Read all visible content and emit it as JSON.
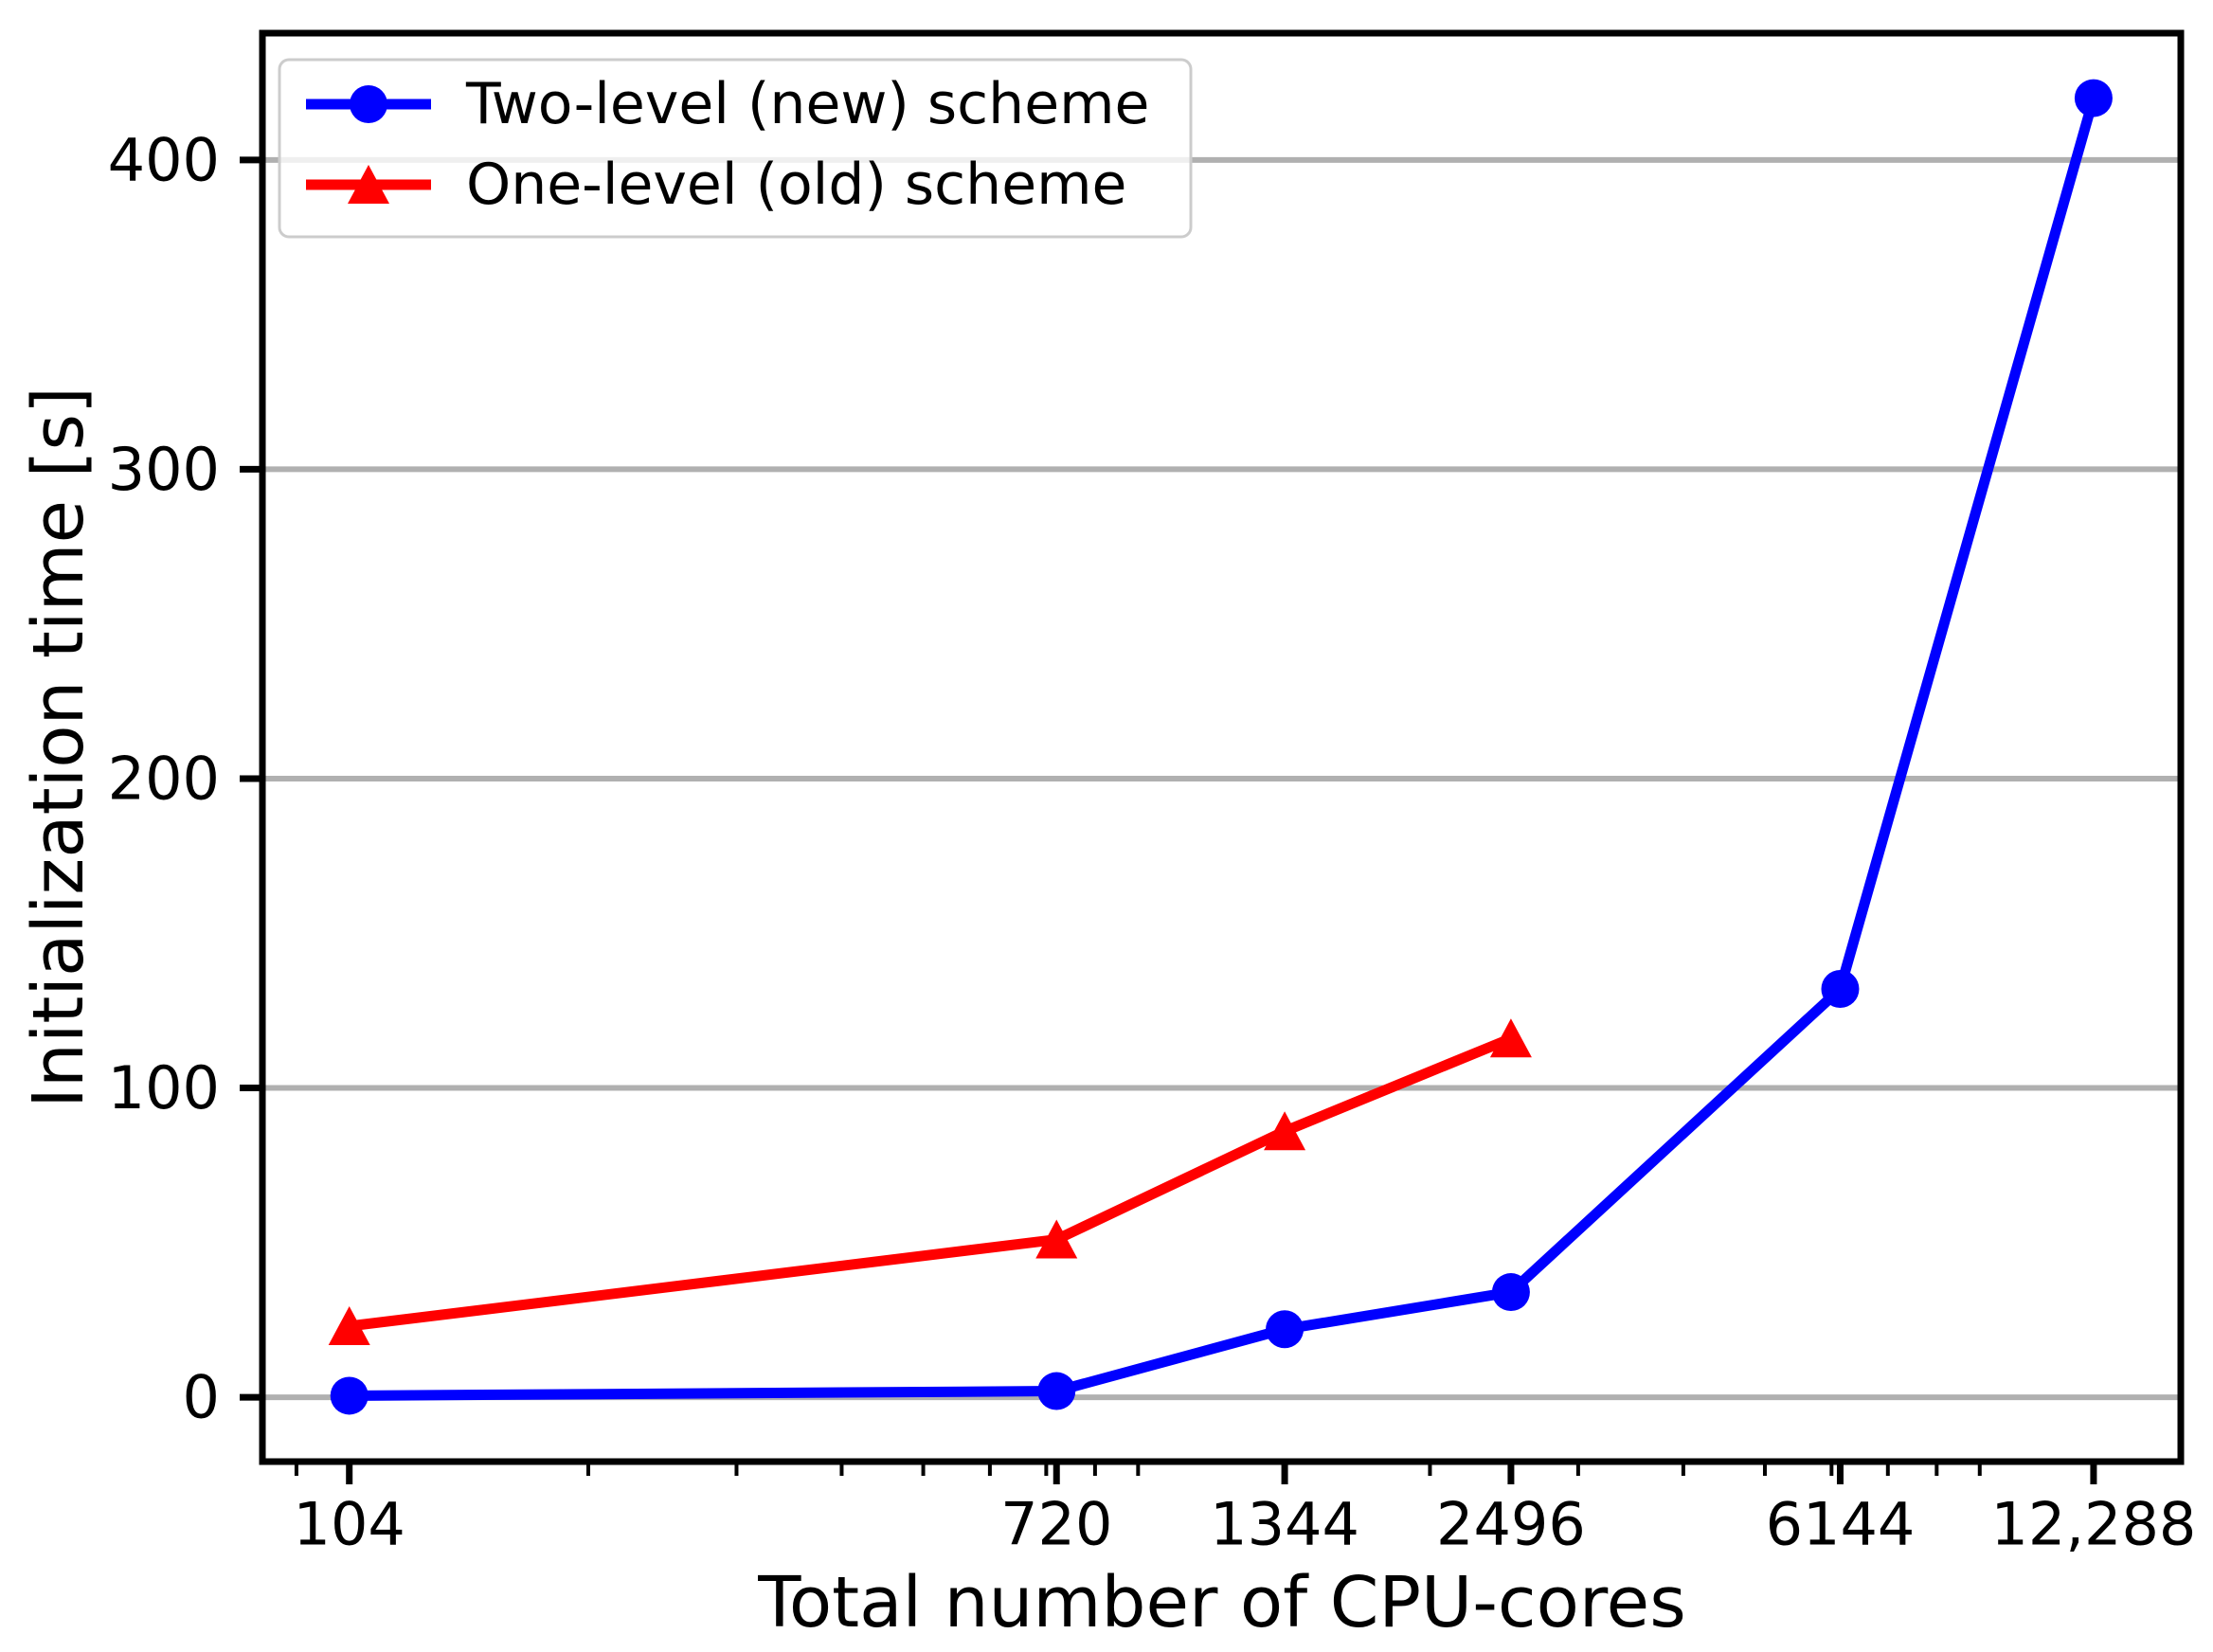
{
  "chart_data": {
    "type": "line",
    "title": "",
    "xlabel": "Total number of CPU-cores",
    "ylabel": "Initialization time [s]",
    "x_scale": "log",
    "y_scale": "linear",
    "xlim": [
      82,
      15600
    ],
    "ylim": [
      -20.8,
      441
    ],
    "grid": "horizontal-only",
    "grid_color": "#b0b0b0",
    "background": "#ffffff",
    "x_ticks": [
      {
        "value": 104,
        "label": "104"
      },
      {
        "value": 720,
        "label": "720"
      },
      {
        "value": 1344,
        "label": "1344"
      },
      {
        "value": 2496,
        "label": "2496"
      },
      {
        "value": 6144,
        "label": "6144"
      },
      {
        "value": 12288,
        "label": "12,288"
      }
    ],
    "x_minor_ticks": [
      90,
      200,
      300,
      400,
      500,
      600,
      700,
      800,
      900,
      2000,
      3000,
      4000,
      5000,
      6000,
      7000,
      8000,
      9000
    ],
    "y_ticks": [
      {
        "value": 0,
        "label": "0"
      },
      {
        "value": 100,
        "label": "100"
      },
      {
        "value": 200,
        "label": "200"
      },
      {
        "value": 300,
        "label": "300"
      },
      {
        "value": 400,
        "label": "400"
      }
    ],
    "legend": {
      "position": "upper-left",
      "entries": [
        "Two-level (new) scheme",
        "One-level (old) scheme"
      ]
    },
    "series": [
      {
        "name": "Two-level (new) scheme",
        "color": "#0000ff",
        "marker": "circle",
        "x": [
          104,
          720,
          1344,
          2496,
          6144,
          12288
        ],
        "y": [
          0.5,
          2,
          22,
          34,
          132,
          420
        ]
      },
      {
        "name": "One-level (old) scheme",
        "color": "#ff0000",
        "marker": "triangle-up",
        "x": [
          104,
          720,
          1344,
          2496
        ],
        "y": [
          23,
          51,
          86,
          116
        ]
      }
    ]
  }
}
